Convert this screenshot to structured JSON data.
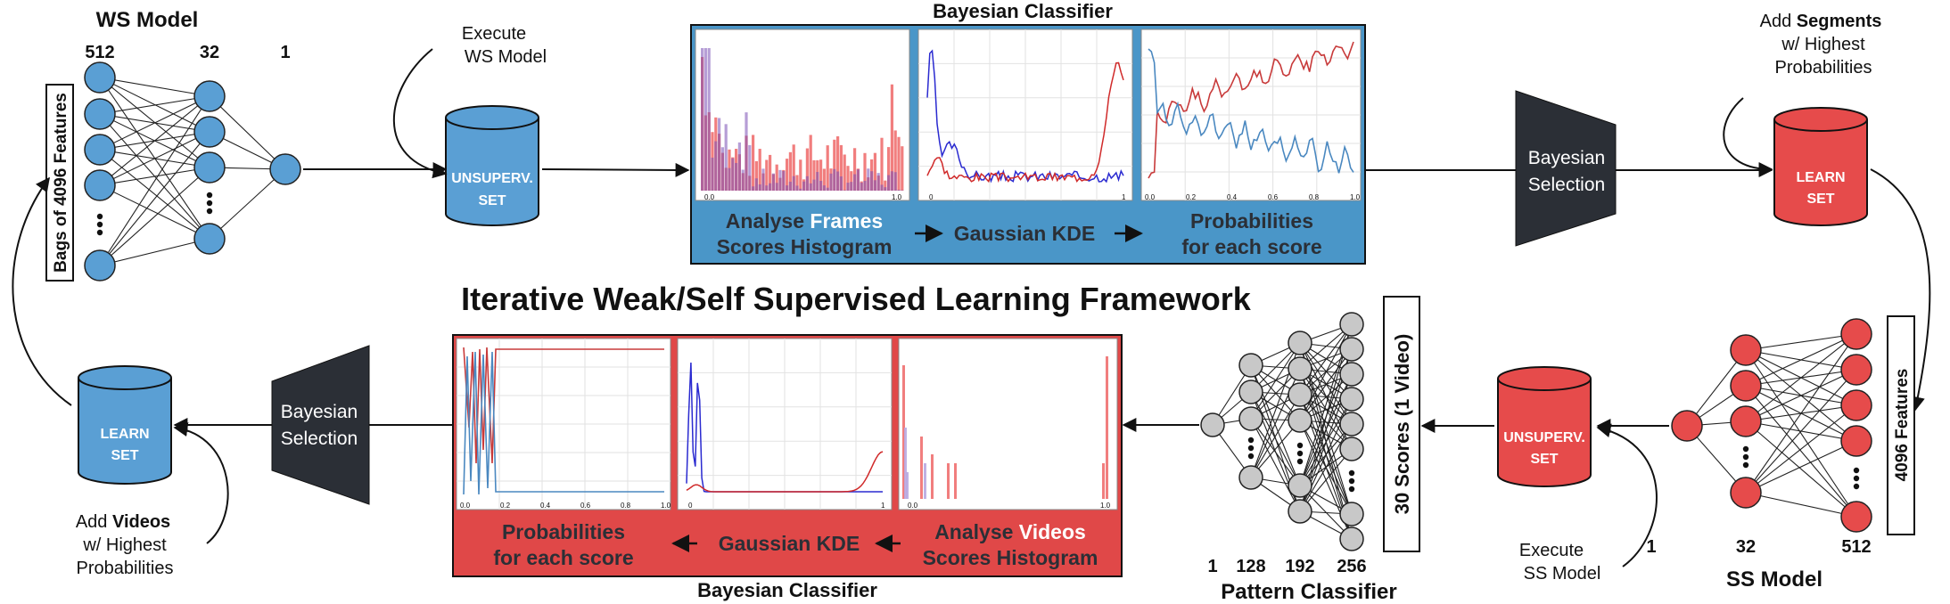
{
  "title": "Iterative Weak/Self Supervised Learning Framework",
  "ws_model": {
    "title": "WS Model",
    "layers": [
      "512",
      "32",
      "1"
    ],
    "input_label": "Bags of 4096 Features"
  },
  "ss_model": {
    "title": "SS Model",
    "layers": [
      "1",
      "32",
      "512"
    ],
    "input_label": "4096 Features"
  },
  "pattern_classifier": {
    "title": "Pattern Classifier",
    "layers": [
      "1",
      "128",
      "192",
      "256"
    ],
    "input_label": "30 Scores (1 Video)"
  },
  "top_classifier": {
    "title": "Bayesian Classifier",
    "stage1_a": "Analyse ",
    "stage1_hl": "Frames",
    "stage1_b": "Scores Histogram",
    "stage2": "Gaussian KDE",
    "stage3_a": "Probabilities",
    "stage3_b": "for each score",
    "axis": {
      "hist_x": [
        "0.0",
        "1.0"
      ],
      "kde_x": [
        "0",
        "1"
      ],
      "prob_x": [
        "0.0",
        "0.2",
        "0.4",
        "0.6",
        "0.8",
        "1.0"
      ]
    }
  },
  "bottom_classifier": {
    "title": "Bayesian Classifier",
    "stage1_a": "Analyse ",
    "stage1_hl": "Videos",
    "stage1_b": "Scores Histogram",
    "stage2": "Gaussian KDE",
    "stage3_a": "Probabilities",
    "stage3_b": "for each score",
    "axis": {
      "prob_x": [
        "0.0",
        "0.2",
        "0.4",
        "0.6",
        "0.8",
        "1.0"
      ],
      "kde_x": [
        "0",
        "1"
      ],
      "hist_x": [
        "0.0",
        "1.0"
      ]
    }
  },
  "databases": {
    "ws_unsuperv": [
      "UNSUPERV.",
      "SET"
    ],
    "ss_learn": [
      "LEARN",
      "SET"
    ],
    "ss_unsuperv": [
      "UNSUPERV.",
      "SET"
    ],
    "ws_learn": [
      "LEARN",
      "SET"
    ]
  },
  "selection_label": [
    "Bayesian",
    "Selection"
  ],
  "annotations": {
    "execute_ws": [
      "Execute",
      "WS Model"
    ],
    "execute_ss": [
      "Execute",
      "SS Model"
    ],
    "add_segments_a": "Add ",
    "add_segments_b": "Segments",
    "add_segments_c": [
      "w/ Highest",
      "Probabilities"
    ],
    "add_videos_a": "Add ",
    "add_videos_b": "Videos",
    "add_videos_c": [
      "w/ Highest",
      "Probabilities"
    ]
  },
  "colors": {
    "blue": "#5a9fd4",
    "red": "#e64b4b",
    "gray": "#c8c8c8",
    "dark": "#2b2f36",
    "panel_blue": "#4a96c8",
    "panel_red": "#e04848"
  }
}
